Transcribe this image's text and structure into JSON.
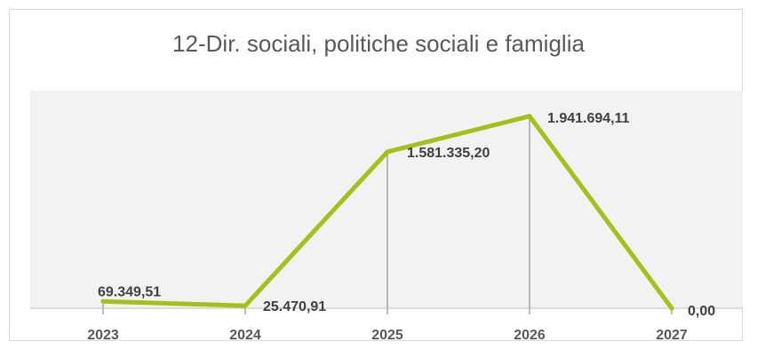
{
  "chart_data": {
    "type": "line",
    "title": "12-Dir. sociali, politiche sociali e famiglia",
    "categories": [
      "2023",
      "2024",
      "2025",
      "2026",
      "2027"
    ],
    "series": [
      {
        "values": [
          69349.51,
          25470.91,
          1581335.2,
          1941694.11,
          0
        ],
        "labels": [
          "69.349,51",
          "25.470,91",
          "1.581.335,20",
          "1.941.694,11",
          "0,00"
        ]
      }
    ],
    "xlabel": "",
    "ylabel": "",
    "ylim": [
      0,
      2200000
    ],
    "grid": false,
    "legend": "none",
    "colors": {
      "line": "#a7bf1a",
      "plot_background": "#f2f2f2",
      "drop_lines": "#7f7f7f",
      "axis": "#bfbfbf"
    }
  }
}
